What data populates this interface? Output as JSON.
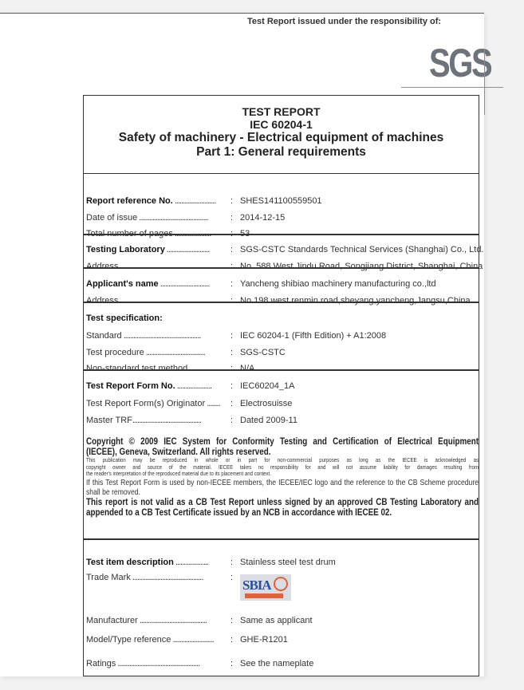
{
  "header": {
    "issued_by": "Test Report issued under the responsibility of:",
    "logo_text": "SGS",
    "logo_accent": "#e0714b"
  },
  "title": {
    "line1": "TEST REPORT",
    "line2": "IEC 60204-1",
    "line3": "Safety of machinery - Electrical equipment of machines",
    "line4": "Part 1: General requirements"
  },
  "rows": [
    {
      "label": "Report reference No.",
      "dots": " .........................",
      "value": "SHES141100559501",
      "bold": true
    },
    {
      "label": "Date of issue",
      "dots": " ..........................................",
      "value": "2014-12-15"
    },
    {
      "label": "Total number of pages",
      "dots": " ......................",
      "value": "53"
    },
    {
      "label": "Testing Laboratory",
      "dots": " ..........................",
      "value": "SGS-CSTC Standards Technical Services (Shanghai) Co., Ltd.",
      "bold": true
    },
    {
      "label": "Address",
      "dots": " ..................................................",
      "value": "No. 588 West Jindu Road, Songjiang District, Shanghai, China"
    },
    {
      "label": "Applicant's name",
      "dots": " ..............................",
      "value": "Yancheng shibiao machinery manufacturing co.,ltd",
      "bold": true
    },
    {
      "label": "Address",
      "dots": " ..................................................",
      "value": "No 198 west renmin road,sheyang,yancheng,Jangsu,China"
    },
    {
      "label": "Test specification:",
      "dots": "",
      "value": "",
      "bold": true,
      "nocolon": true
    },
    {
      "label": "Standard",
      "dots": " ...............................................",
      "value": "IEC 60204-1 (Fifth Edition) + A1:2008"
    },
    {
      "label": "Test procedure",
      "dots": " ....................................",
      "value": "SGS-CSTC"
    },
    {
      "label": "Non-standard test method",
      "dots": "..............",
      "value": "N/A"
    },
    {
      "label": "Test Report Form No.",
      "dots": " .....................",
      "value": "IEC60204_1A",
      "bold": true
    },
    {
      "label": "Test Report Form(s) Originator",
      "dots": " ........",
      "value": "Electrosuisse"
    },
    {
      "label": "Master TRF",
      "dots": "..........................................",
      "value": "Dated 2009-11"
    }
  ],
  "copyright": {
    "bold1": "Copyright © 2009 IEC System for Conformity Testing and Certification of Electrical Equipment",
    "bold2": "(IECEE), Geneva, Switzerland. All rights reserved.",
    "small1": "This publication may be reproduced in whole or in part for non-commercial purposes as long as the IECEE is acknowledged as",
    "small2": "copyright owner and source of the material. IECEE takes no responsibility for and will not assume liability for damages resulting from",
    "small3": "the reader's interpretation of the reproduced material due to its placement and context.",
    "note": "If this Test Report Form is used by non-IECEE members, the IECEE/IEC logo and the reference to the CB Scheme procedure shall be removed.",
    "validity": "This report is not valid as a CB Test Report unless signed by an approved CB Testing Laboratory and appended to a CB Test Certificate issued by an NCB in accordance with IECEE 02."
  },
  "item": {
    "description": {
      "label": "Test item description",
      "dots": " ....................",
      "value": "Stainless steel test drum"
    },
    "trade_mark": {
      "label": "Trade Mark",
      "dots": " ...........................................",
      "logo_text": "SBIA"
    },
    "manufacturer": {
      "label": "Manufacturer",
      "dots": " .........................................",
      "value": "Same as applicant"
    },
    "model": {
      "label": "Model/Type reference",
      "dots": " .........................",
      "value": "GHE-R1201"
    },
    "ratings": {
      "label": "Ratings",
      "dots": " ..................................................",
      "value": "See the nameplate"
    }
  }
}
